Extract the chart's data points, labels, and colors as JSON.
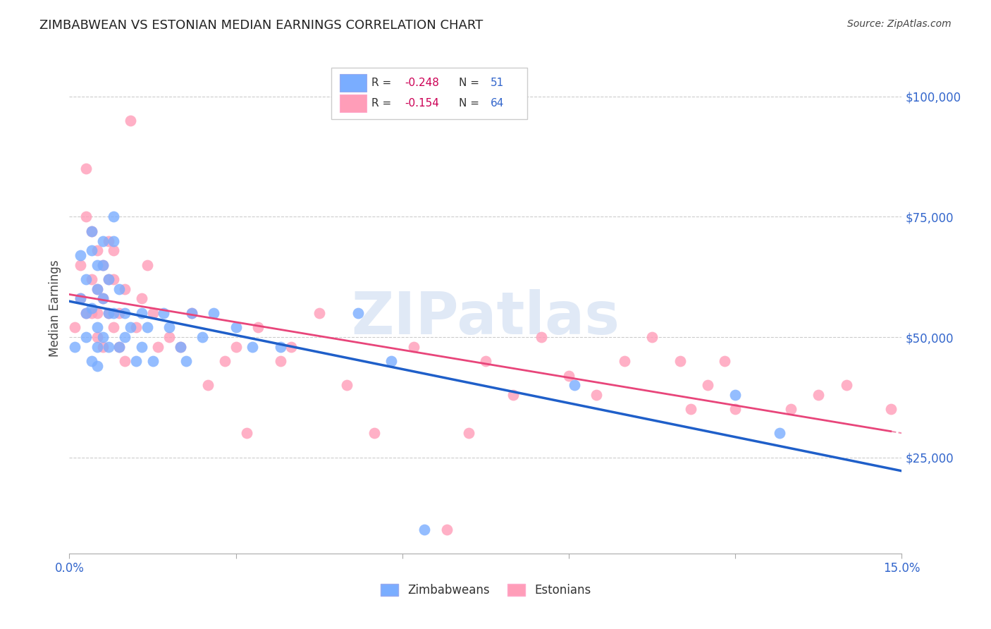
{
  "title": "ZIMBABWEAN VS ESTONIAN MEDIAN EARNINGS CORRELATION CHART",
  "source": "Source: ZipAtlas.com",
  "ylabel": "Median Earnings",
  "xlim": [
    0.0,
    0.15
  ],
  "ylim": [
    5000,
    107000
  ],
  "yticks": [
    25000,
    50000,
    75000,
    100000
  ],
  "ytick_labels": [
    "$25,000",
    "$50,000",
    "$75,000",
    "$100,000"
  ],
  "xticks": [
    0.0,
    0.03,
    0.06,
    0.09,
    0.12,
    0.15
  ],
  "xtick_labels": [
    "0.0%",
    "",
    "",
    "",
    "",
    "15.0%"
  ],
  "grid_color": "#cccccc",
  "background_color": "#ffffff",
  "watermark": "ZIPatlas",
  "legend_R_blue": "-0.248",
  "legend_N_blue": "51",
  "legend_R_pink": "-0.154",
  "legend_N_pink": "64",
  "blue_color": "#7aadff",
  "pink_color": "#ff9db8",
  "blue_line_color": "#1f5fc9",
  "pink_line_color": "#e8457a",
  "label_color": "#3366cc",
  "blue_scatter": {
    "x": [
      0.001,
      0.002,
      0.002,
      0.003,
      0.003,
      0.003,
      0.004,
      0.004,
      0.004,
      0.004,
      0.005,
      0.005,
      0.005,
      0.005,
      0.005,
      0.006,
      0.006,
      0.006,
      0.006,
      0.007,
      0.007,
      0.007,
      0.008,
      0.008,
      0.008,
      0.009,
      0.009,
      0.01,
      0.01,
      0.011,
      0.012,
      0.013,
      0.013,
      0.014,
      0.015,
      0.017,
      0.018,
      0.02,
      0.021,
      0.022,
      0.024,
      0.026,
      0.03,
      0.033,
      0.038,
      0.052,
      0.058,
      0.064,
      0.091,
      0.12,
      0.128
    ],
    "y": [
      48000,
      67000,
      58000,
      62000,
      55000,
      50000,
      68000,
      72000,
      56000,
      45000,
      65000,
      60000,
      52000,
      48000,
      44000,
      70000,
      65000,
      58000,
      50000,
      62000,
      55000,
      48000,
      75000,
      70000,
      55000,
      60000,
      48000,
      55000,
      50000,
      52000,
      45000,
      55000,
      48000,
      52000,
      45000,
      55000,
      52000,
      48000,
      45000,
      55000,
      50000,
      55000,
      52000,
      48000,
      48000,
      55000,
      45000,
      10000,
      40000,
      38000,
      30000
    ]
  },
  "pink_scatter": {
    "x": [
      0.001,
      0.002,
      0.002,
      0.003,
      0.003,
      0.003,
      0.004,
      0.004,
      0.004,
      0.005,
      0.005,
      0.005,
      0.005,
      0.006,
      0.006,
      0.006,
      0.007,
      0.007,
      0.007,
      0.008,
      0.008,
      0.008,
      0.009,
      0.009,
      0.01,
      0.01,
      0.011,
      0.012,
      0.013,
      0.014,
      0.015,
      0.016,
      0.018,
      0.02,
      0.022,
      0.025,
      0.028,
      0.03,
      0.032,
      0.034,
      0.038,
      0.04,
      0.045,
      0.05,
      0.055,
      0.062,
      0.068,
      0.072,
      0.075,
      0.08,
      0.085,
      0.09,
      0.095,
      0.1,
      0.105,
      0.11,
      0.112,
      0.115,
      0.118,
      0.12,
      0.13,
      0.135,
      0.14,
      0.148
    ],
    "y": [
      52000,
      65000,
      58000,
      75000,
      85000,
      55000,
      62000,
      72000,
      55000,
      68000,
      60000,
      55000,
      50000,
      65000,
      58000,
      48000,
      70000,
      62000,
      55000,
      68000,
      62000,
      52000,
      55000,
      48000,
      60000,
      45000,
      95000,
      52000,
      58000,
      65000,
      55000,
      48000,
      50000,
      48000,
      55000,
      40000,
      45000,
      48000,
      30000,
      52000,
      45000,
      48000,
      55000,
      40000,
      30000,
      48000,
      10000,
      30000,
      45000,
      38000,
      50000,
      42000,
      38000,
      45000,
      50000,
      45000,
      35000,
      40000,
      45000,
      35000,
      35000,
      38000,
      40000,
      35000
    ]
  }
}
